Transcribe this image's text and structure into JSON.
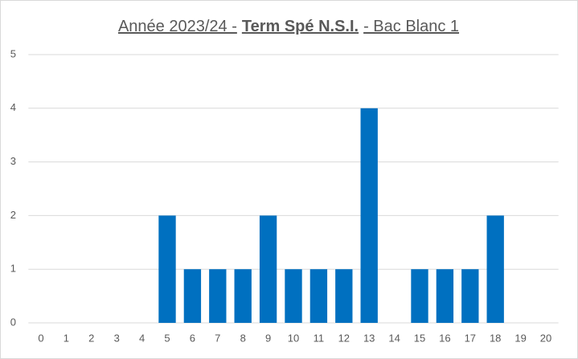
{
  "chart_data": {
    "type": "bar",
    "title": [
      "Année 2023/24 -",
      "Term Spé N.S.I.",
      "- Bac Blanc 1"
    ],
    "categories": [
      0,
      1,
      2,
      3,
      4,
      5,
      6,
      7,
      8,
      9,
      10,
      11,
      12,
      13,
      14,
      15,
      16,
      17,
      18,
      19,
      20
    ],
    "values": [
      0,
      0,
      0,
      0,
      0,
      2,
      1,
      1,
      1,
      2,
      1,
      1,
      1,
      4,
      0,
      1,
      1,
      1,
      2,
      0,
      0
    ],
    "color": "#0070c0",
    "ylim": [
      0,
      5
    ],
    "yticks": [
      0,
      1,
      2,
      3,
      4,
      5
    ],
    "grid": true
  }
}
